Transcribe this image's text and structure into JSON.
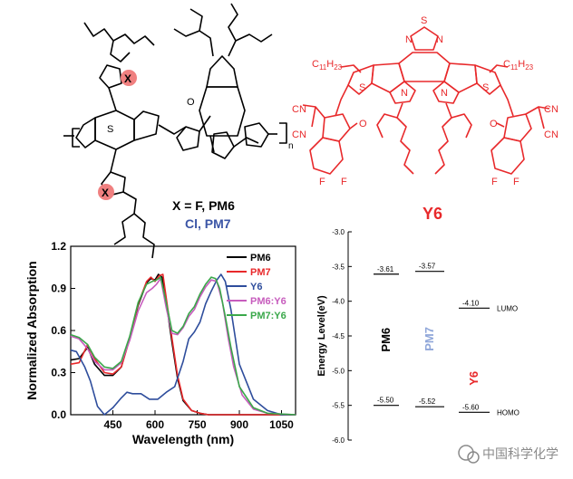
{
  "structures": {
    "pm_polymer": {
      "sub_x_top": "X",
      "sub_x_bottom": "X",
      "atom_s": "S",
      "atom_o": "O",
      "repeat_n": "n",
      "caption_line1": "X = F, PM6",
      "caption_line2": "Cl, PM7",
      "colors": {
        "bonds": "#000000",
        "x_circle": "#f08080",
        "pm7_text": "#3b55a6"
      }
    },
    "y6": {
      "name": "Y6",
      "sub_c11": "C",
      "sub_c11_index": "11",
      "sub_h23": "H",
      "sub_h23_index": "23",
      "atom_s": "S",
      "atom_n": "N",
      "atom_o": "O",
      "atom_f": "F",
      "atom_cn": "CN",
      "color": "#e8292b"
    }
  },
  "chart_data": [
    {
      "type": "line",
      "xlabel": "Wavelength (nm)",
      "ylabel": "Normalized Absorption",
      "xlim": [
        300,
        1100
      ],
      "ylim": [
        0.0,
        1.2
      ],
      "xticks": [
        "450",
        "600",
        "750",
        "900",
        "1050"
      ],
      "yticks": [
        "0.0",
        "0.3",
        "0.6",
        "0.9",
        "1.2"
      ],
      "legend_placement": "top-right",
      "series": [
        {
          "name": "PM6",
          "color": "#000000",
          "x": [
            300,
            330,
            360,
            385,
            420,
            450,
            480,
            510,
            540,
            570,
            585,
            600,
            612,
            625,
            640,
            660,
            680,
            700,
            730,
            760,
            790,
            820,
            850,
            880,
            910,
            950,
            1000,
            1100
          ],
          "y": [
            0.39,
            0.4,
            0.48,
            0.36,
            0.28,
            0.28,
            0.34,
            0.55,
            0.78,
            0.94,
            0.97,
            0.96,
            1.0,
            0.98,
            0.8,
            0.52,
            0.26,
            0.1,
            0.03,
            0.01,
            0.0,
            0.0,
            0.0,
            0.0,
            0.0,
            0.0,
            0.0,
            0.0
          ]
        },
        {
          "name": "PM7",
          "color": "#e8292b",
          "x": [
            300,
            330,
            360,
            385,
            420,
            450,
            480,
            510,
            540,
            570,
            585,
            600,
            615,
            628,
            640,
            660,
            680,
            700,
            730,
            760,
            790,
            1100
          ],
          "y": [
            0.36,
            0.37,
            0.5,
            0.4,
            0.3,
            0.29,
            0.34,
            0.54,
            0.79,
            0.95,
            0.98,
            0.95,
            0.99,
            1.0,
            0.83,
            0.55,
            0.28,
            0.11,
            0.03,
            0.01,
            0.0,
            0.0
          ]
        },
        {
          "name": "Y6",
          "color": "#2e4d9c",
          "x": [
            300,
            320,
            350,
            370,
            395,
            420,
            450,
            480,
            500,
            520,
            550,
            580,
            610,
            640,
            670,
            700,
            720,
            740,
            760,
            780,
            800,
            820,
            835,
            850,
            870,
            900,
            950,
            1000,
            1050,
            1100
          ],
          "y": [
            0.46,
            0.45,
            0.34,
            0.24,
            0.06,
            0.0,
            0.05,
            0.12,
            0.16,
            0.15,
            0.15,
            0.11,
            0.11,
            0.16,
            0.2,
            0.38,
            0.54,
            0.59,
            0.66,
            0.79,
            0.88,
            0.96,
            1.0,
            0.95,
            0.75,
            0.36,
            0.11,
            0.03,
            0.0,
            0.0
          ]
        },
        {
          "name": "PM6:Y6",
          "color": "#c75cbd",
          "x": [
            300,
            330,
            360,
            385,
            420,
            450,
            480,
            510,
            540,
            570,
            590,
            605,
            620,
            640,
            660,
            680,
            700,
            720,
            740,
            760,
            780,
            800,
            820,
            840,
            860,
            880,
            910,
            950,
            1000,
            1100
          ],
          "y": [
            0.56,
            0.54,
            0.47,
            0.38,
            0.32,
            0.32,
            0.37,
            0.53,
            0.74,
            0.87,
            0.9,
            0.93,
            0.97,
            0.76,
            0.58,
            0.57,
            0.62,
            0.7,
            0.75,
            0.84,
            0.91,
            0.96,
            0.95,
            0.8,
            0.55,
            0.34,
            0.14,
            0.04,
            0.01,
            0.0
          ]
        },
        {
          "name": "PM7:Y6",
          "color": "#3aa84a",
          "x": [
            300,
            330,
            360,
            385,
            420,
            450,
            480,
            510,
            540,
            570,
            590,
            605,
            620,
            640,
            660,
            680,
            700,
            720,
            740,
            760,
            780,
            800,
            815,
            830,
            850,
            870,
            900,
            950,
            1000,
            1100
          ],
          "y": [
            0.57,
            0.55,
            0.5,
            0.41,
            0.34,
            0.33,
            0.38,
            0.56,
            0.8,
            0.93,
            0.95,
            0.96,
            0.98,
            0.8,
            0.6,
            0.58,
            0.63,
            0.72,
            0.77,
            0.86,
            0.93,
            0.98,
            0.97,
            0.9,
            0.7,
            0.48,
            0.2,
            0.05,
            0.01,
            0.0
          ]
        }
      ]
    },
    {
      "type": "energy-level",
      "ylabel": "Energy Level(eV)",
      "ylim": [
        -6.0,
        -3.0
      ],
      "yticks": [
        "-3.0",
        "-3.5",
        "-4.0",
        "-4.5",
        "-5.0",
        "-5.5",
        "-6.0"
      ],
      "materials": [
        {
          "name": "PM6",
          "color": "#000000",
          "lumo": -3.61,
          "homo": -5.5,
          "lumo_label": "-3.61",
          "homo_label": "-5.50"
        },
        {
          "name": "PM7",
          "color": "#8fa6d9",
          "lumo": -3.57,
          "homo": -5.52,
          "lumo_label": "-3.57",
          "homo_label": "-5.52"
        },
        {
          "name": "Y6",
          "color": "#e8292b",
          "lumo": -4.1,
          "homo": -5.6,
          "lumo_label": "-4.10",
          "homo_label": "-5.60"
        }
      ],
      "level_names": {
        "lumo": "LUMO",
        "homo": "HOMO"
      }
    }
  ],
  "watermark": {
    "text": "中国科学化学",
    "color": "#8a8a8a"
  }
}
